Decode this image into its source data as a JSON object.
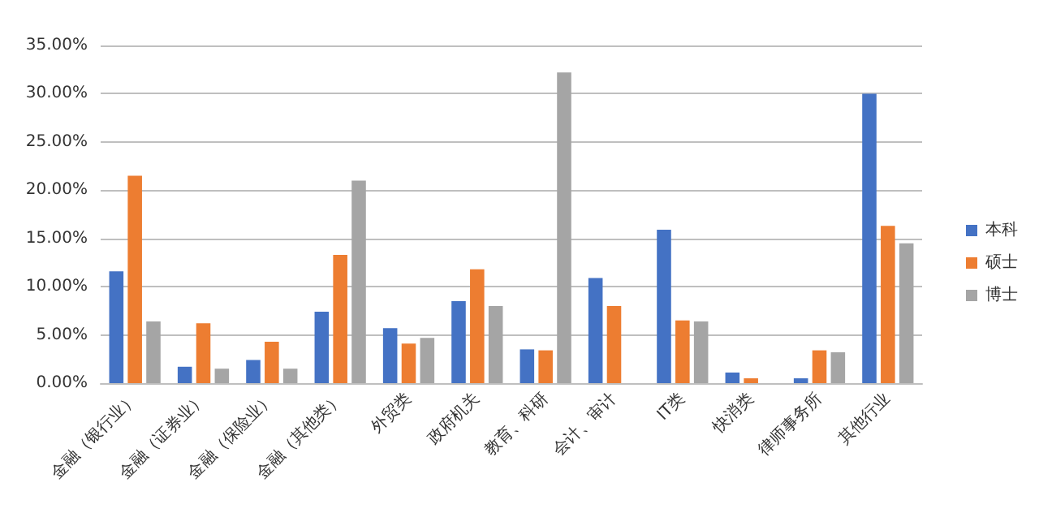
{
  "chart_data": {
    "type": "bar",
    "categories": [
      "金融（银行业）",
      "金融（证券业）",
      "金融（保险业）",
      "金融（其他类）",
      "外贸类",
      "政府机关",
      "教育、科研",
      "会计、审计",
      "IT类",
      "快消类",
      "律师事务所",
      "其他行业"
    ],
    "series": [
      {
        "name": "本科",
        "color": "#4472c4",
        "values": [
          11.6,
          1.7,
          2.4,
          7.4,
          5.7,
          8.5,
          3.5,
          10.9,
          15.9,
          1.1,
          0.5,
          30.0
        ]
      },
      {
        "name": "硕士",
        "color": "#ed7d31",
        "values": [
          21.5,
          6.2,
          4.3,
          13.3,
          4.1,
          11.8,
          3.4,
          8.0,
          6.5,
          0.5,
          3.4,
          16.3
        ]
      },
      {
        "name": "博士",
        "color": "#a5a5a5",
        "values": [
          6.4,
          1.5,
          1.5,
          21.0,
          4.7,
          8.0,
          32.2,
          0,
          6.4,
          0,
          3.2,
          14.5
        ]
      }
    ],
    "ylim": [
      0,
      35
    ],
    "yticks": [
      {
        "value": 0,
        "label": "0.00%"
      },
      {
        "value": 5,
        "label": "5.00%"
      },
      {
        "value": 10,
        "label": "10.00%"
      },
      {
        "value": 15,
        "label": "15.00%"
      },
      {
        "value": 20,
        "label": "20.00%"
      },
      {
        "value": 25,
        "label": "25.00%"
      },
      {
        "value": 30,
        "label": "30.00%"
      },
      {
        "value": 35,
        "label": "35.00%"
      }
    ],
    "grid": "y",
    "legend": "right"
  }
}
